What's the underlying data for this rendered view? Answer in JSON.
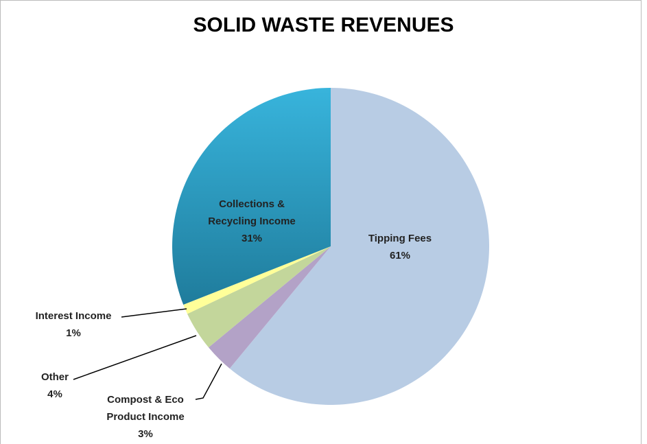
{
  "chart_data": {
    "type": "pie",
    "title": "SOLID WASTE REVENUES",
    "categories": [
      "Tipping Fees",
      "Compost & Eco Product Income",
      "Other",
      "Interest Income",
      "Collections & Recycling Income"
    ],
    "values": [
      61,
      3,
      4,
      1,
      31
    ],
    "value_labels": [
      "61%",
      "3%",
      "4%",
      "1%",
      "31%"
    ],
    "colors": [
      "#b8cce4",
      "#b3a2c7",
      "#c3d69b",
      "#ffff99",
      "#2ea3c9"
    ]
  }
}
